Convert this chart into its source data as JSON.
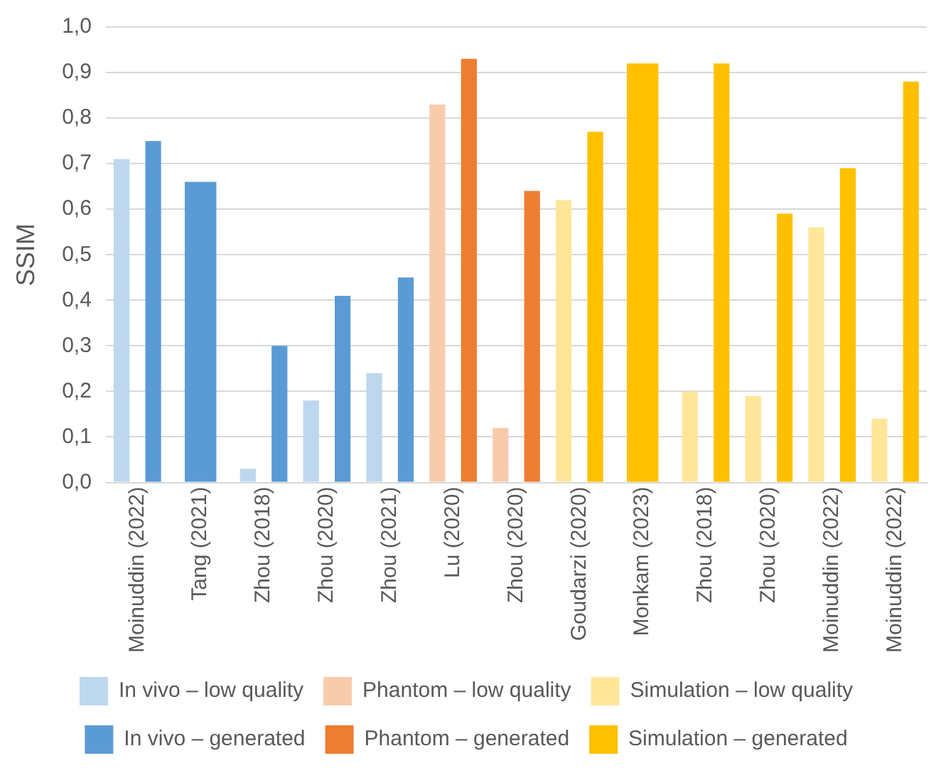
{
  "chart_data": {
    "type": "bar",
    "ylabel": "SSIM",
    "categories": [
      "Moinuddin (2022)",
      "Tang (2021)",
      "Zhou (2018)",
      "Zhou (2020)",
      "Zhou (2021)",
      "Lu (2020)",
      "Zhou (2020)",
      "Goudarzi (2020)",
      "Monkam (2023)",
      "Zhou (2018)",
      "Zhou (2020)",
      "Moinuddin (2022)",
      "Moinuddin (2022)"
    ],
    "series": [
      {
        "name": "In vivo – low quality",
        "color": "#bdd7ee",
        "values": [
          0.71,
          null,
          0.03,
          0.18,
          0.24,
          null,
          null,
          null,
          null,
          null,
          null,
          null,
          null
        ]
      },
      {
        "name": "Phantom – low quality",
        "color": "#f8cbad",
        "values": [
          null,
          null,
          null,
          null,
          null,
          0.83,
          0.12,
          null,
          null,
          null,
          null,
          null,
          null
        ]
      },
      {
        "name": "Simulation – low quality",
        "color": "#ffe699",
        "values": [
          null,
          null,
          null,
          null,
          null,
          null,
          null,
          0.62,
          null,
          0.2,
          0.19,
          0.56,
          0.14
        ]
      },
      {
        "name": "In vivo – generated",
        "color": "#5b9bd5",
        "values": [
          0.75,
          0.66,
          0.3,
          0.41,
          0.45,
          null,
          null,
          null,
          null,
          null,
          null,
          null,
          null
        ]
      },
      {
        "name": "Phantom – generated",
        "color": "#ed7d31",
        "values": [
          null,
          null,
          null,
          null,
          null,
          0.93,
          0.64,
          null,
          null,
          null,
          null,
          null,
          null
        ]
      },
      {
        "name": "Simulation – generated",
        "color": "#ffc000",
        "values": [
          null,
          null,
          null,
          null,
          null,
          null,
          null,
          0.77,
          0.92,
          0.92,
          0.59,
          0.69,
          0.88
        ]
      }
    ],
    "ylim": [
      0,
      1
    ],
    "yticks": [
      {
        "value": 0,
        "label": "0,0"
      },
      {
        "value": 0.1,
        "label": "0,1"
      },
      {
        "value": 0.2,
        "label": "0,2"
      },
      {
        "value": 0.3,
        "label": "0,3"
      },
      {
        "value": 0.4,
        "label": "0,4"
      },
      {
        "value": 0.5,
        "label": "0,5"
      },
      {
        "value": 0.6,
        "label": "0,6"
      },
      {
        "value": 0.7,
        "label": "0,7"
      },
      {
        "value": 0.8,
        "label": "0,8"
      },
      {
        "value": 0.9,
        "label": "0,9"
      },
      {
        "value": 1,
        "label": "1,0"
      }
    ],
    "grid": "y",
    "legend": "bottom"
  }
}
